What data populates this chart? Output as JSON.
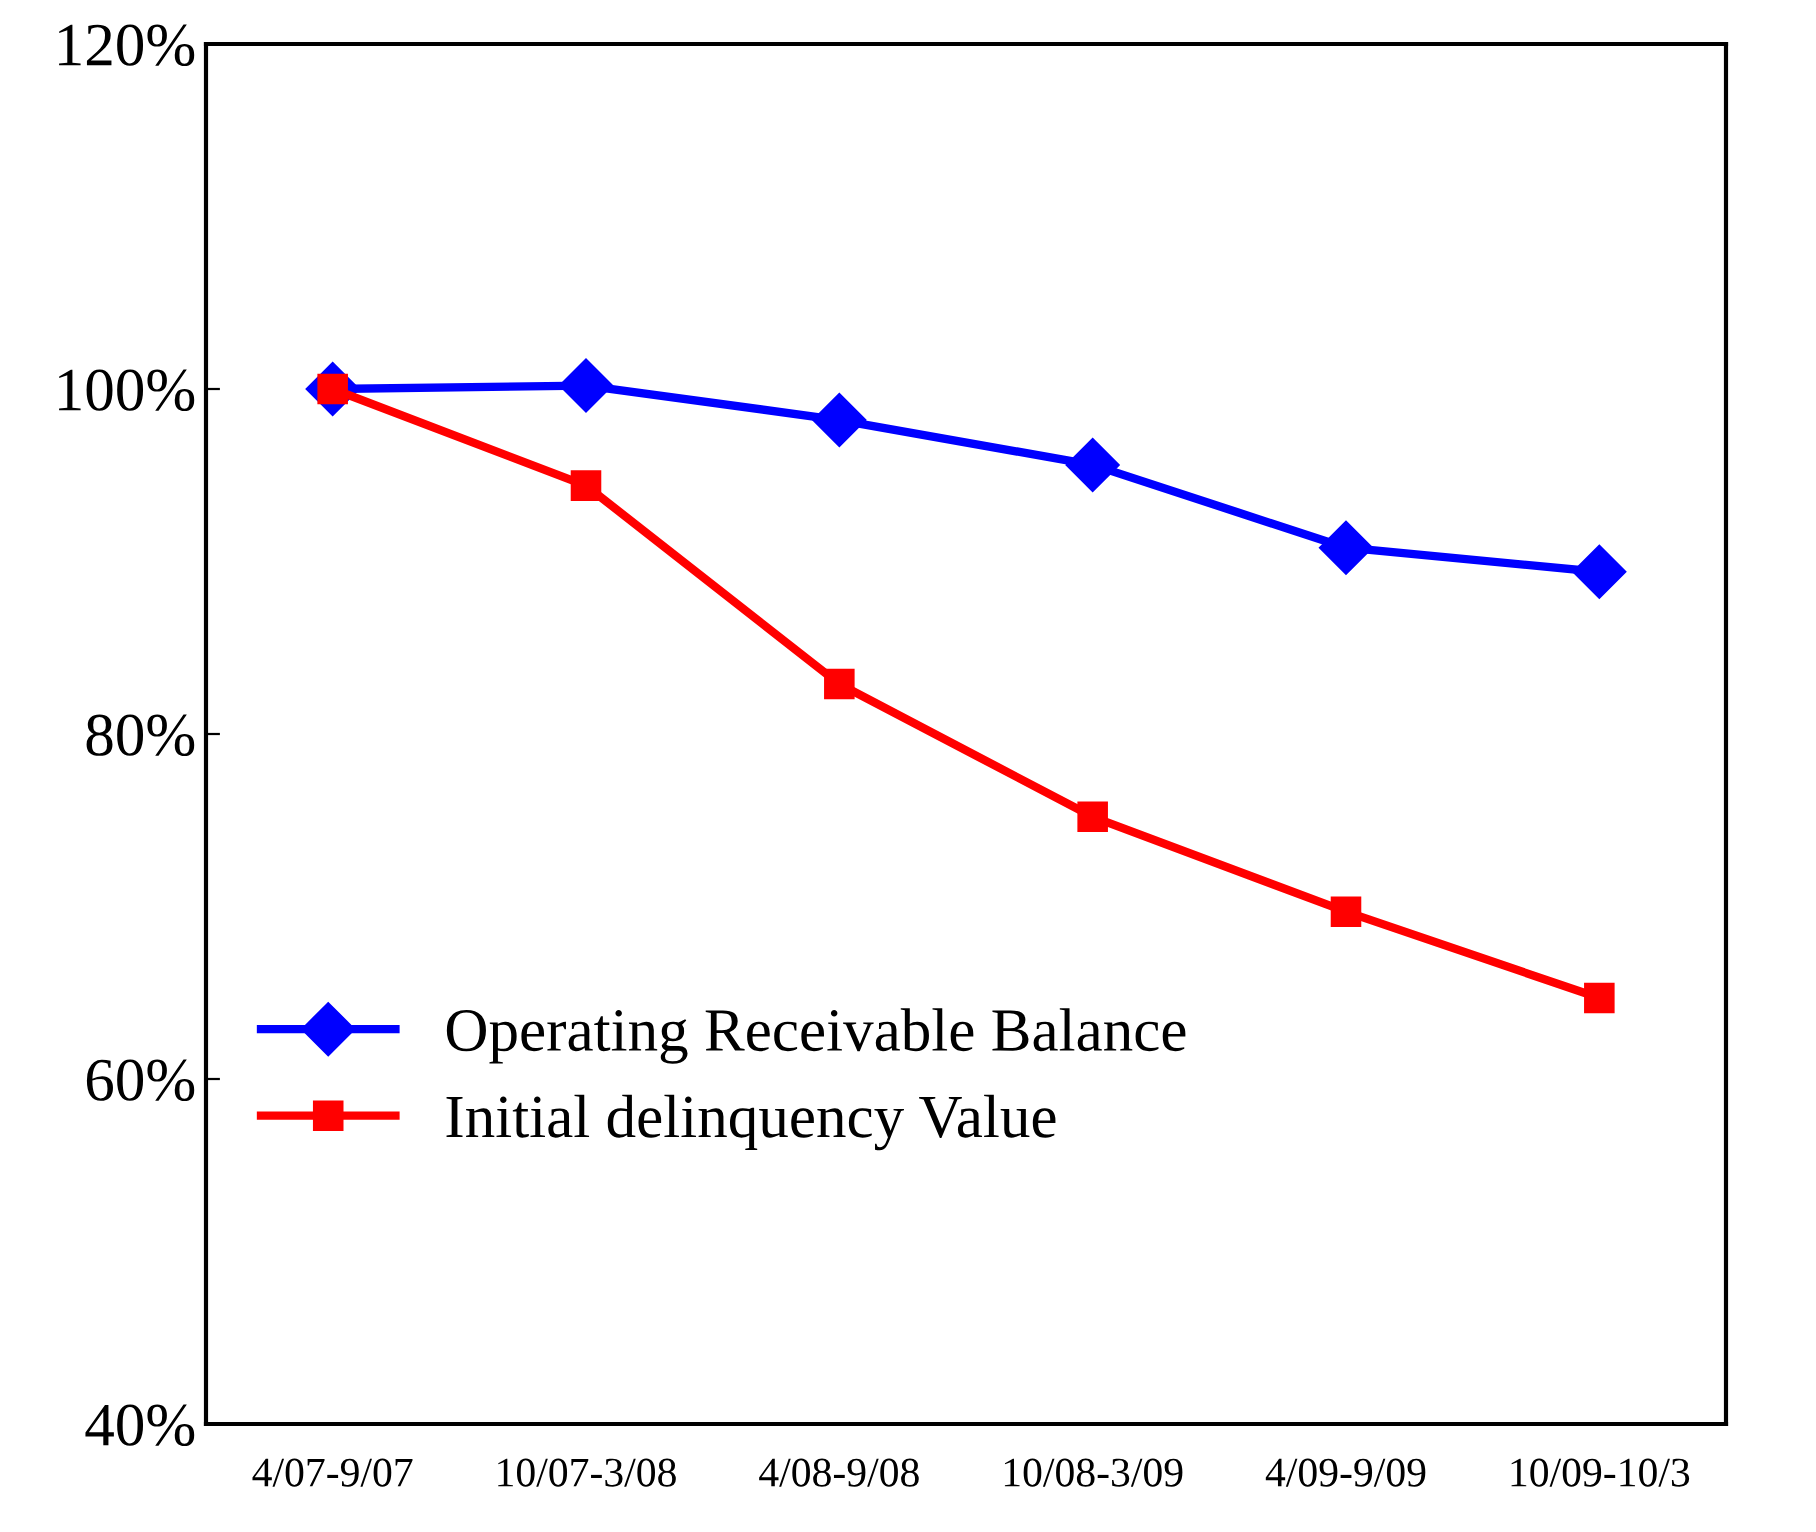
{
  "chart_data": {
    "type": "line",
    "categories": [
      "4/07-9/07",
      "10/07-3/08",
      "4/08-9/08",
      "10/08-3/09",
      "4/09-9/09",
      "10/09-10/3"
    ],
    "series": [
      {
        "name": "Operating Receivable Balance",
        "color": "#0000ff",
        "marker": "diamond",
        "values": [
          100,
          100.2,
          98.2,
          95.6,
          90.8,
          89.4
        ]
      },
      {
        "name": "Initial delinquency Value",
        "color": "#ff0000",
        "marker": "square",
        "values": [
          100,
          94.4,
          82.9,
          75.2,
          69.7,
          64.7
        ]
      }
    ],
    "ylim": [
      40,
      120
    ],
    "yticks": [
      {
        "value": 40,
        "label": "40%"
      },
      {
        "value": 60,
        "label": "60%"
      },
      {
        "value": 80,
        "label": "80%"
      },
      {
        "value": 100,
        "label": "100%"
      },
      {
        "value": 120,
        "label": "120%"
      }
    ],
    "grid": false,
    "legend": "center left",
    "line_style": "solid"
  }
}
